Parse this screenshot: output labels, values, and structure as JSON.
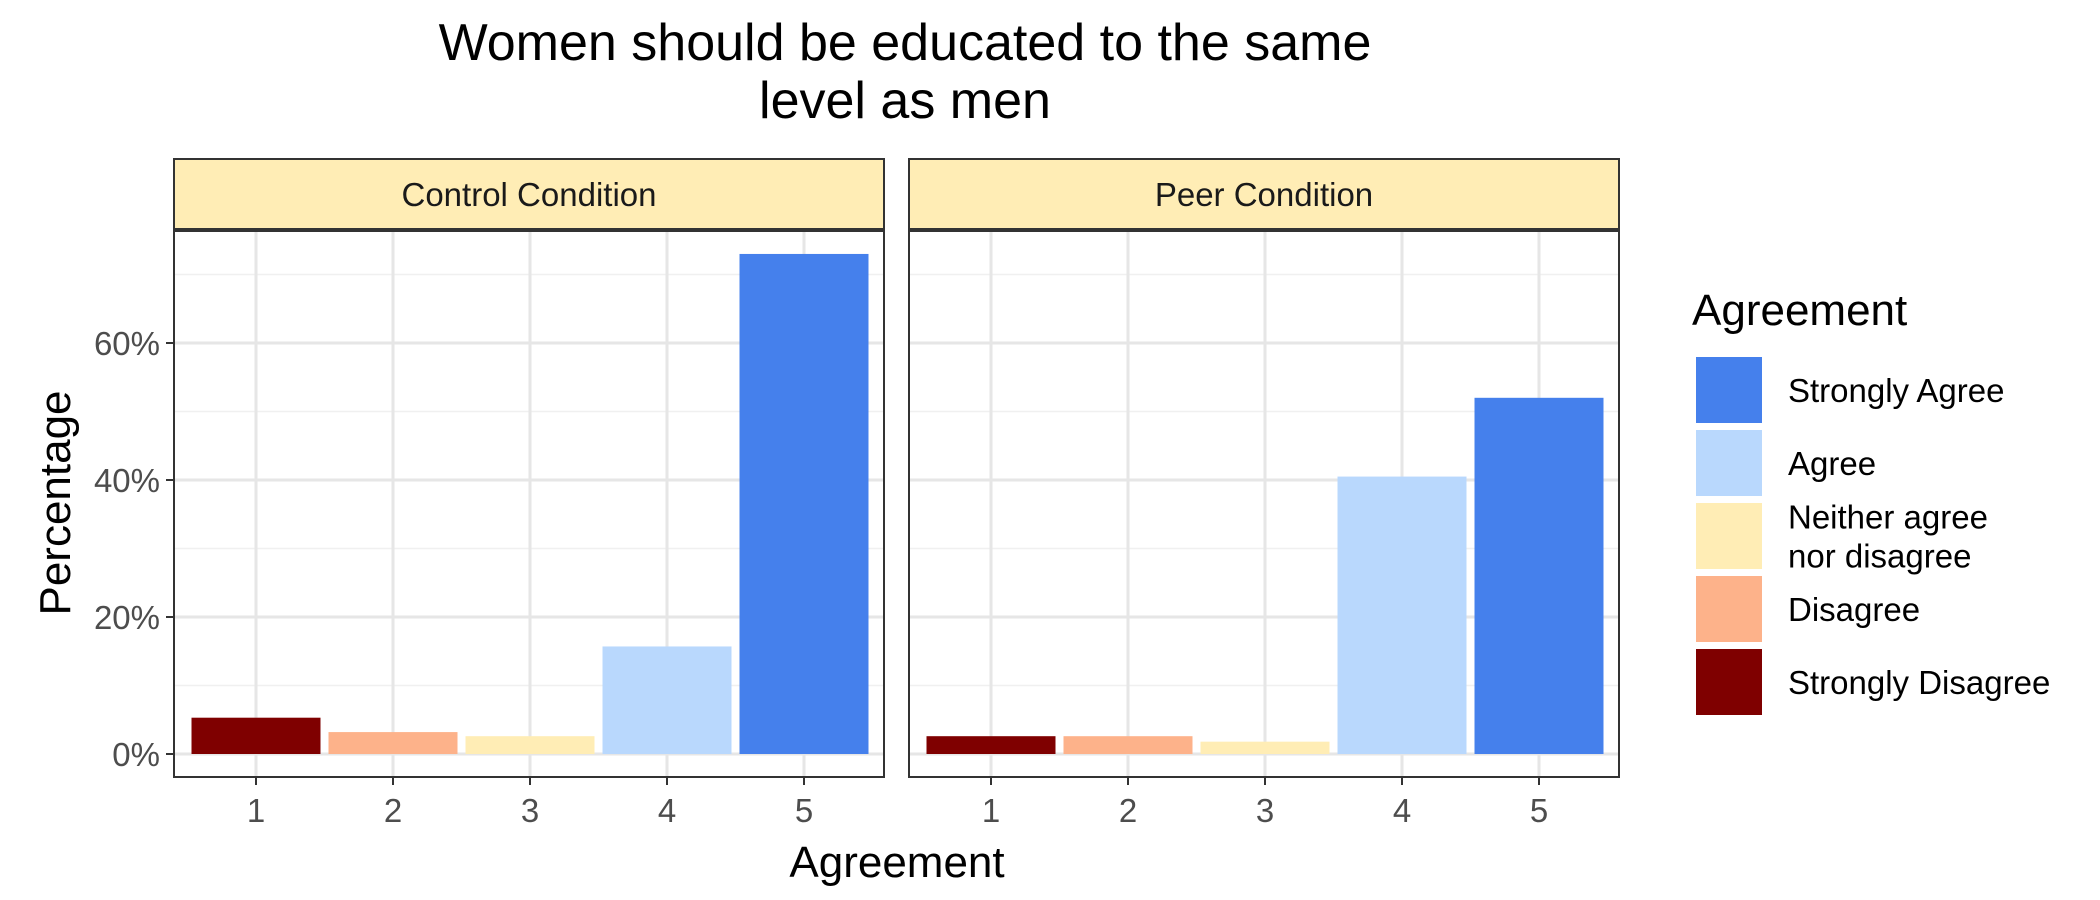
{
  "chart_data": {
    "type": "bar",
    "title": [
      "Women should be educated to the same",
      "level as men"
    ],
    "xlabel": "Agreement",
    "ylabel": "Percentage",
    "categories": [
      "1",
      "2",
      "3",
      "4",
      "5"
    ],
    "ylim": [
      0,
      0.76
    ],
    "yticks": [
      0,
      0.2,
      0.4,
      0.6
    ],
    "ytick_labels": [
      "0%",
      "20%",
      "40%",
      "60%"
    ],
    "grid": true,
    "panels": [
      {
        "name": "Control Condition",
        "values": [
          0.053,
          0.032,
          0.026,
          0.157,
          0.73
        ]
      },
      {
        "name": "Peer Condition",
        "values": [
          0.026,
          0.026,
          0.018,
          0.405,
          0.52
        ]
      }
    ],
    "category_colors": [
      "#7f0000",
      "#fdb28a",
      "#ffedb5",
      "#b9d8fd",
      "#4580ec"
    ],
    "legend": {
      "title": "Agreement",
      "position": "right",
      "items": [
        {
          "label": [
            "Strongly Agree"
          ],
          "color": "#4580ec"
        },
        {
          "label": [
            "Agree"
          ],
          "color": "#b9d8fd"
        },
        {
          "label": [
            "Neither agree",
            "nor disagree"
          ],
          "color": "#ffedb5"
        },
        {
          "label": [
            "Disagree"
          ],
          "color": "#fdb28a"
        },
        {
          "label": [
            "Strongly Disagree"
          ],
          "color": "#7f0000"
        }
      ]
    },
    "strip_color": "#ffedb5"
  }
}
